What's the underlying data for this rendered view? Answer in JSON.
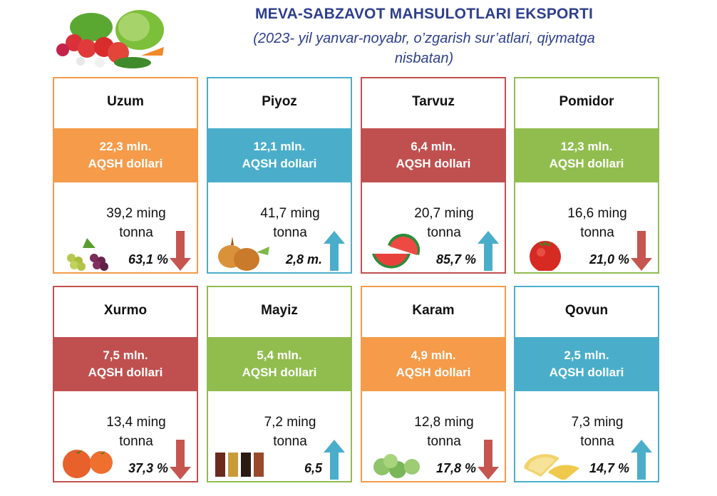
{
  "header": {
    "title": "MEVA-SABZAVOT MAHSULOTLARI EKSPORTI",
    "subtitle_line1": "(2023- yil yanvar-noyabr, o’zgarish sur’atlari, qiymatga",
    "subtitle_line2": "nisbatan)"
  },
  "colors": {
    "orange": "#f59b4a",
    "blue": "#4aaecb",
    "red": "#c0504f",
    "green": "#91bd4f",
    "arrow_up": "#4aaecb",
    "arrow_down": "#c65550"
  },
  "cards": [
    {
      "name": "Uzum",
      "value": "22,3 mln.",
      "unit": "AQSH dollari",
      "qty1": "39,2 ming",
      "qty2": "tonna",
      "pct": "63,1 %",
      "trend": "down",
      "color": "orange",
      "icon": "grapes-icon"
    },
    {
      "name": "Piyoz",
      "value": "12,1 mln.",
      "unit": "AQSH dollari",
      "qty1": "41,7 ming",
      "qty2": "tonna",
      "pct": "2,8 m.",
      "trend": "up",
      "color": "blue",
      "icon": "onion-icon"
    },
    {
      "name": "Tarvuz",
      "value": "6,4 mln.",
      "unit": "AQSH dollari",
      "qty1": "20,7 ming",
      "qty2": "tonna",
      "pct": "85,7  %",
      "trend": "up",
      "color": "red",
      "icon": "watermelon-icon"
    },
    {
      "name": "Pomidor",
      "value": "12,3 mln.",
      "unit": "AQSH dollari",
      "qty1": "16,6 ming",
      "qty2": "tonna",
      "pct": "21,0 %",
      "trend": "down",
      "color": "green",
      "icon": "tomato-icon"
    },
    {
      "name": "Xurmo",
      "value": "7,5 mln.",
      "unit": "AQSH dollari",
      "qty1": "13,4 ming",
      "qty2": "tonna",
      "pct": "37,3 %",
      "trend": "down",
      "color": "red",
      "icon": "persimmon-icon"
    },
    {
      "name": "Mayiz",
      "value": "5,4 mln.",
      "unit": "AQSH dollari",
      "qty1": "7,2  ming",
      "qty2": "tonna",
      "pct": "6,5",
      "trend": "up",
      "color": "green",
      "icon": "raisins-icon"
    },
    {
      "name": "Karam",
      "value": "4,9 mln.",
      "unit": "AQSH dollari",
      "qty1": "12,8 ming",
      "qty2": "tonna",
      "pct": "17,8 %",
      "trend": "down",
      "color": "orange",
      "icon": "cabbage-icon"
    },
    {
      "name": "Qovun",
      "value": "2,5 mln.",
      "unit": "AQSH dollari",
      "qty1": "7,3 ming",
      "qty2": "tonna",
      "pct": "14,7 %",
      "trend": "up",
      "color": "blue",
      "icon": "melon-icon"
    }
  ]
}
